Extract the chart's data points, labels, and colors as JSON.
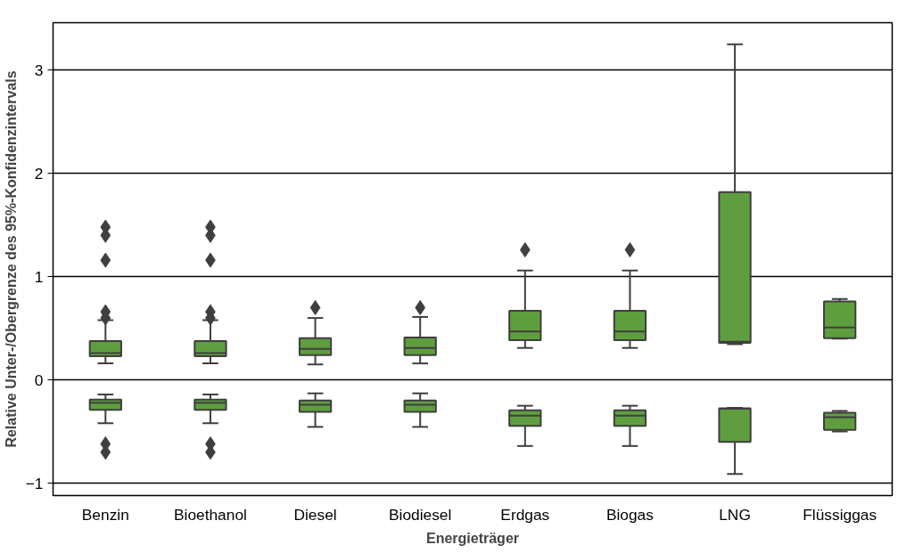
{
  "chart_data": {
    "type": "box",
    "xlabel": "Energieträger",
    "ylabel": "Relative Unter-/Obergrenze des 95%-Konfidenzintervals",
    "categories": [
      "Benzin",
      "Bioethanol",
      "Diesel",
      "Biodiesel",
      "Erdgas",
      "Biogas",
      "LNG",
      "Flüssiggas"
    ],
    "ylim": [
      -1.12,
      3.46
    ],
    "yticks": [
      -1,
      0,
      1,
      2,
      3
    ],
    "grid": "y",
    "marker": "diamond",
    "series": [
      {
        "color": "#5f9e3f",
        "boxes": [
          {
            "low": 0.16,
            "q1": 0.23,
            "median": 0.26,
            "q3": 0.376,
            "high": 0.58,
            "outliers": [
              0.6,
              0.66,
              1.16,
              1.4,
              1.48
            ]
          },
          {
            "low": 0.16,
            "q1": 0.23,
            "median": 0.26,
            "q3": 0.376,
            "high": 0.58,
            "outliers": [
              0.6,
              0.66,
              1.16,
              1.4,
              1.48
            ]
          },
          {
            "low": 0.15,
            "q1": 0.24,
            "median": 0.3,
            "q3": 0.405,
            "high": 0.6,
            "outliers": [
              0.7
            ]
          },
          {
            "low": 0.16,
            "q1": 0.24,
            "median": 0.31,
            "q3": 0.41,
            "high": 0.61,
            "outliers": [
              0.7
            ]
          },
          {
            "low": 0.31,
            "q1": 0.385,
            "median": 0.47,
            "q3": 0.67,
            "high": 1.06,
            "outliers": [
              1.26
            ]
          },
          {
            "low": 0.31,
            "q1": 0.385,
            "median": 0.47,
            "q3": 0.67,
            "high": 1.06,
            "outliers": [
              1.26
            ]
          },
          {
            "low": 0.347,
            "q1": 0.36,
            "median": 0.37,
            "q3": 1.82,
            "high": 3.25
          },
          {
            "low": 0.4,
            "q1": 0.405,
            "median": 0.507,
            "q3": 0.76,
            "high": 0.785
          }
        ]
      },
      {
        "color": "#5f9e3f",
        "boxes": [
          {
            "low": -0.42,
            "q1": -0.29,
            "median": -0.22,
            "q3": -0.19,
            "high": -0.14,
            "outliers": [
              -0.62,
              -0.7
            ]
          },
          {
            "low": -0.42,
            "q1": -0.29,
            "median": -0.22,
            "q3": -0.19,
            "high": -0.14,
            "outliers": [
              -0.62,
              -0.7
            ]
          },
          {
            "low": -0.455,
            "q1": -0.31,
            "median": -0.24,
            "q3": -0.2,
            "high": -0.13
          },
          {
            "low": -0.455,
            "q1": -0.31,
            "median": -0.24,
            "q3": -0.2,
            "high": -0.13
          },
          {
            "low": -0.64,
            "q1": -0.446,
            "median": -0.345,
            "q3": -0.295,
            "high": -0.25
          },
          {
            "low": -0.64,
            "q1": -0.446,
            "median": -0.345,
            "q3": -0.295,
            "high": -0.25
          },
          {
            "low": -0.91,
            "q1": -0.6,
            "median": -0.28,
            "q3": -0.275,
            "high": -0.27
          },
          {
            "low": -0.5,
            "q1": -0.484,
            "median": -0.36,
            "q3": -0.318,
            "high": -0.3
          }
        ]
      }
    ]
  }
}
